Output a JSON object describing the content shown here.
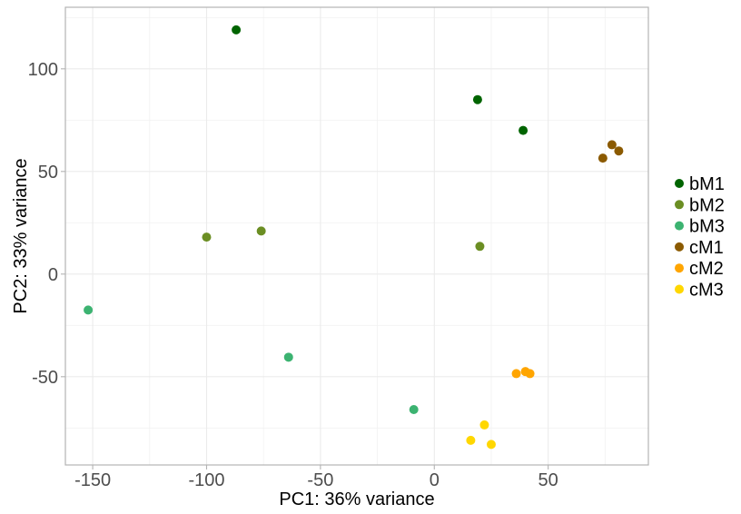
{
  "chart_data": {
    "type": "scatter",
    "xlabel": "PC1: 36% variance",
    "ylabel": "PC2: 33% variance",
    "xlim": [
      -162,
      94
    ],
    "ylim": [
      -93,
      130
    ],
    "x_ticks": [
      -150,
      -100,
      -50,
      0,
      50
    ],
    "y_ticks": [
      -50,
      0,
      50,
      100
    ],
    "x_minor": [
      -125,
      -75,
      -25,
      25,
      75
    ],
    "y_minor": [
      -75,
      -25,
      25,
      75,
      125
    ],
    "grid": true,
    "legend_position": "right",
    "series": [
      {
        "name": "bM1",
        "color": "#006400",
        "points": [
          [
            -87,
            119
          ],
          [
            19,
            85
          ],
          [
            39,
            70
          ]
        ]
      },
      {
        "name": "bM2",
        "color": "#6B8E23",
        "points": [
          [
            -100,
            18
          ],
          [
            -76,
            21
          ],
          [
            20,
            13.5
          ]
        ]
      },
      {
        "name": "bM3",
        "color": "#3CB371",
        "points": [
          [
            -152,
            -17.5
          ],
          [
            -64,
            -40.5
          ],
          [
            -9,
            -66
          ]
        ]
      },
      {
        "name": "cM1",
        "color": "#8B5A00",
        "points": [
          [
            74,
            56.5
          ],
          [
            78,
            63
          ],
          [
            81,
            60
          ]
        ]
      },
      {
        "name": "cM2",
        "color": "#FFA500",
        "points": [
          [
            36,
            -48.5
          ],
          [
            40,
            -47.5
          ],
          [
            42,
            -48.5
          ]
        ]
      },
      {
        "name": "cM3",
        "color": "#FFD700",
        "points": [
          [
            16,
            -81
          ],
          [
            22,
            -73.5
          ],
          [
            25,
            -83
          ]
        ]
      }
    ]
  }
}
